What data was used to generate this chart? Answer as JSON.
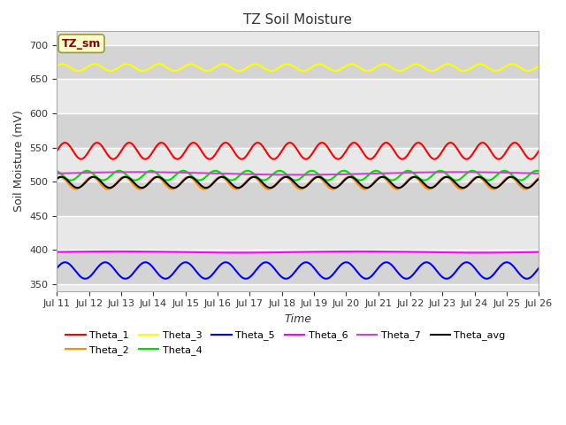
{
  "title": "TZ Soil Moisture",
  "xlabel": "Time",
  "ylabel": "Soil Moisture (mV)",
  "ylim": [
    340,
    720
  ],
  "xlim": [
    0,
    15
  ],
  "yticks": [
    350,
    400,
    450,
    500,
    550,
    600,
    650,
    700
  ],
  "xtick_labels": [
    "Jul 11",
    "Jul 12",
    "Jul 13",
    "Jul 14",
    "Jul 15",
    "Jul 16",
    "Jul 17",
    "Jul 18",
    "Jul 19",
    "Jul 20",
    "Jul 21",
    "Jul 22",
    "Jul 23",
    "Jul 24",
    "Jul 25",
    "Jul 26"
  ],
  "series": [
    {
      "name": "Theta_1",
      "color": "#ff0000",
      "base": 545,
      "amp": 12,
      "freq": 15.0,
      "phase": 0.0,
      "lw": 1.5
    },
    {
      "name": "Theta_2",
      "color": "#ff8c00",
      "base": 498,
      "amp": 9,
      "freq": 15.0,
      "phase": 1.0,
      "lw": 1.5
    },
    {
      "name": "Theta_3",
      "color": "#ffff00",
      "base": 667,
      "amp": 5,
      "freq": 15.0,
      "phase": 0.5,
      "lw": 1.5
    },
    {
      "name": "Theta_4",
      "color": "#00dd00",
      "base": 509,
      "amp": 7,
      "freq": 15.0,
      "phase": 2.0,
      "lw": 1.5
    },
    {
      "name": "Theta_5",
      "color": "#0000ff",
      "base": 370,
      "amp": 12,
      "freq": 12.0,
      "phase": 0.3,
      "lw": 1.5
    },
    {
      "name": "Theta_6",
      "color": "#ff00ff",
      "base": 397,
      "amp": 1,
      "freq": 2.0,
      "phase": 0.0,
      "lw": 1.5
    },
    {
      "name": "Theta_7",
      "color": "#cc44cc",
      "base": 512,
      "amp": 2,
      "freq": 1.5,
      "phase": 0.0,
      "lw": 1.5
    },
    {
      "name": "Theta_avg",
      "color": "#000000",
      "base": 499,
      "amp": 8,
      "freq": 15.0,
      "phase": 0.7,
      "lw": 1.5
    }
  ],
  "legend_label": "TZ_sm",
  "legend_label_color": "#8b0000",
  "legend_box_facecolor": "#ffffcc",
  "legend_box_edgecolor": "#999933",
  "plot_bg_light": "#e8e8e8",
  "plot_bg_dark": "#d4d4d4",
  "grid_color": "#ffffff",
  "n_points": 2000
}
